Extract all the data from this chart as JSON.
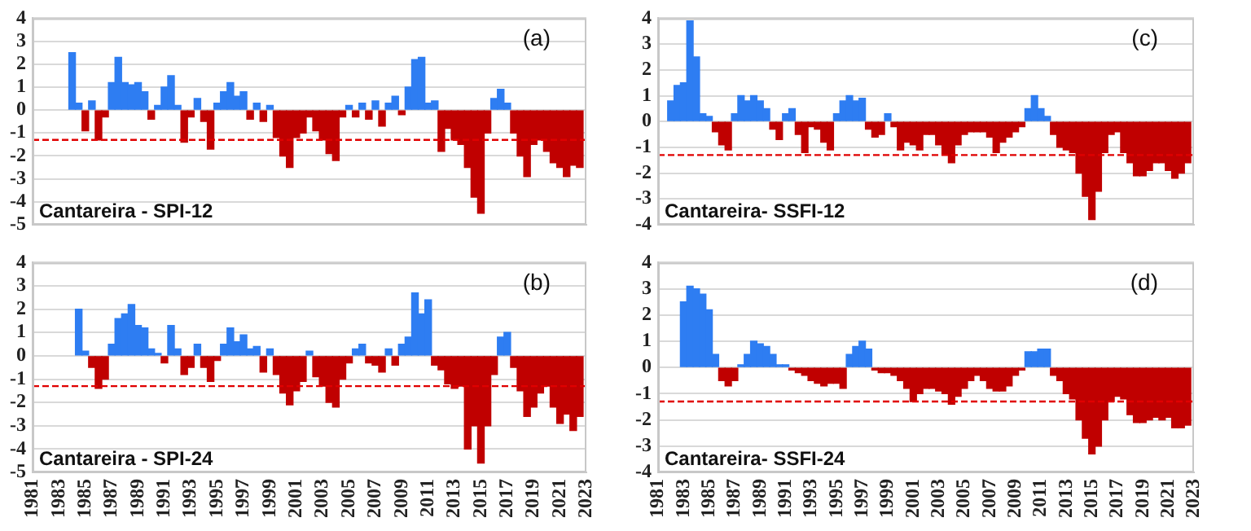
{
  "chart_data": [
    {
      "type": "bar",
      "title": "Cantareira - SPI-12",
      "annotations": [
        "(a)"
      ],
      "x": [
        1984,
        1984.5,
        1985,
        1985.5,
        1986,
        1986.5,
        1987,
        1987.5,
        1988,
        1988.5,
        1989,
        1989.5,
        1990,
        1990.5,
        1991,
        1991.5,
        1992,
        1992.5,
        1993,
        1993.5,
        1994,
        1994.5,
        1995,
        1995.5,
        1996,
        1996.5,
        1997,
        1997.5,
        1998,
        1998.5,
        1999,
        1999.5,
        2000,
        2000.5,
        2001,
        2001.5,
        2002,
        2002.5,
        2003,
        2003.5,
        2004,
        2004.5,
        2005,
        2005.5,
        2006,
        2006.5,
        2007,
        2007.5,
        2008,
        2008.5,
        2009,
        2009.5,
        2010,
        2010.5,
        2011,
        2011.5,
        2012,
        2012.5,
        2013,
        2013.5,
        2014,
        2014.5,
        2015,
        2015.5,
        2016,
        2016.5,
        2017,
        2017.5,
        2018,
        2018.5,
        2019,
        2019.5,
        2020,
        2020.5,
        2021,
        2021.5,
        2022,
        2022.5
      ],
      "values": [
        2.5,
        0.3,
        -0.9,
        0.4,
        -1.3,
        -0.3,
        1.2,
        2.3,
        1.2,
        1.1,
        1.2,
        0.8,
        -0.4,
        0.2,
        1.0,
        1.5,
        0.2,
        -1.4,
        -0.3,
        0.5,
        -0.5,
        -1.7,
        0.3,
        0.8,
        1.2,
        0.6,
        0.8,
        -0.4,
        0.3,
        -0.5,
        0.2,
        -1.2,
        -2.0,
        -2.5,
        -1.2,
        -1.0,
        -0.3,
        -0.9,
        -1.3,
        -1.9,
        -2.2,
        -0.3,
        0.2,
        -0.3,
        0.3,
        -0.4,
        0.4,
        -0.7,
        0.3,
        0.6,
        -0.2,
        1.0,
        2.2,
        2.3,
        0.3,
        0.4,
        -1.8,
        -0.8,
        -1.3,
        -1.5,
        -2.5,
        -3.8,
        -4.5,
        -1.0,
        0.5,
        0.9,
        0.3,
        -1.0,
        -2.0,
        -2.9,
        -1.5,
        -1.3,
        -1.8,
        -2.3,
        -2.5,
        -2.9,
        -2.4,
        -2.5
      ],
      "colors": [
        "#2e7df2",
        "#2e7df2",
        "#c00000",
        "#2e7df2",
        "#c00000",
        "#c00000",
        "#2e7df2",
        "#2e7df2",
        "#2e7df2",
        "#2e7df2",
        "#2e7df2",
        "#2e7df2",
        "#c00000",
        "#2e7df2",
        "#2e7df2",
        "#2e7df2",
        "#2e7df2",
        "#c00000",
        "#c00000",
        "#2e7df2",
        "#c00000",
        "#c00000",
        "#2e7df2",
        "#2e7df2",
        "#2e7df2",
        "#2e7df2",
        "#2e7df2",
        "#c00000",
        "#2e7df2",
        "#c00000",
        "#2e7df2",
        "#c00000",
        "#c00000",
        "#c00000",
        "#c00000",
        "#c00000",
        "#c00000",
        "#c00000",
        "#c00000",
        "#c00000",
        "#c00000",
        "#c00000",
        "#2e7df2",
        "#c00000",
        "#2e7df2",
        "#c00000",
        "#2e7df2",
        "#c00000",
        "#2e7df2",
        "#2e7df2",
        "#c00000",
        "#2e7df2",
        "#2e7df2",
        "#2e7df2",
        "#2e7df2",
        "#2e7df2",
        "#c00000",
        "#c00000",
        "#c00000",
        "#c00000",
        "#c00000",
        "#c00000",
        "#c00000",
        "#c00000",
        "#2e7df2",
        "#2e7df2",
        "#2e7df2",
        "#c00000",
        "#c00000",
        "#c00000",
        "#c00000",
        "#c00000",
        "#c00000",
        "#c00000",
        "#c00000",
        "#c00000",
        "#c00000",
        "#c00000"
      ],
      "xlim": [
        1981,
        2023
      ],
      "xticks": [
        1981,
        1983,
        1985,
        1987,
        1989,
        1991,
        1993,
        1995,
        1997,
        1999,
        2001,
        2003,
        2005,
        2007,
        2009,
        2011,
        2013,
        2015,
        2017,
        2019,
        2021,
        2023
      ],
      "ylim": [
        -5,
        4
      ],
      "yticks": [
        -5,
        -4,
        -3,
        -2,
        -1,
        0,
        1,
        2,
        3,
        4
      ],
      "grid": "y",
      "tick_labels": "y",
      "ref_lines": [
        {
          "axis": "y",
          "value": -1.3,
          "color": "#e00000",
          "line_style": "dashed"
        }
      ]
    },
    {
      "type": "bar",
      "title": "Cantareira- SSFI-12",
      "annotations": [
        "(c)"
      ],
      "x": [
        1982,
        1982.5,
        1983,
        1983.5,
        1984,
        1984.5,
        1985,
        1985.5,
        1986,
        1986.5,
        1987,
        1987.5,
        1988,
        1988.5,
        1989,
        1989.5,
        1990,
        1990.5,
        1991,
        1991.5,
        1992,
        1992.5,
        1993,
        1993.5,
        1994,
        1994.5,
        1995,
        1995.5,
        1996,
        1996.5,
        1997,
        1997.5,
        1998,
        1998.5,
        1999,
        1999.5,
        2000,
        2000.5,
        2001,
        2001.5,
        2002,
        2002.5,
        2003,
        2003.5,
        2004,
        2004.5,
        2005,
        2005.5,
        2006,
        2006.5,
        2007,
        2007.5,
        2008,
        2008.5,
        2009,
        2009.5,
        2010,
        2010.5,
        2011,
        2011.5,
        2012,
        2012.5,
        2013,
        2013.5,
        2014,
        2014.5,
        2015,
        2015.5,
        2016,
        2016.5,
        2017,
        2017.5,
        2018,
        2018.5,
        2019,
        2019.5,
        2020,
        2020.5,
        2021,
        2021.5,
        2022,
        2022.5
      ],
      "values": [
        0.8,
        1.4,
        1.5,
        3.9,
        2.5,
        0.3,
        0.2,
        -0.4,
        -0.9,
        -1.1,
        0.3,
        1.0,
        0.8,
        1.0,
        0.8,
        0.5,
        -0.3,
        -0.7,
        0.3,
        0.5,
        -0.5,
        -1.2,
        -0.2,
        -0.3,
        -0.8,
        -1.1,
        0.3,
        0.8,
        1.0,
        0.8,
        0.9,
        -0.3,
        -0.6,
        -0.5,
        0.3,
        -0.2,
        -1.1,
        -0.8,
        -0.9,
        -1.1,
        -0.5,
        -0.5,
        -0.9,
        -1.3,
        -1.6,
        -0.9,
        -0.5,
        -0.4,
        -0.4,
        -0.4,
        -0.6,
        -1.2,
        -0.8,
        -0.6,
        -0.4,
        -0.2,
        0.5,
        1.0,
        0.5,
        0.2,
        -0.5,
        -1.0,
        -1.1,
        -1.2,
        -2.0,
        -2.9,
        -3.8,
        -2.7,
        -1.2,
        -0.5,
        -0.4,
        -1.2,
        -1.6,
        -2.1,
        -2.1,
        -1.9,
        -1.6,
        -1.6,
        -1.9,
        -2.2,
        -2.0,
        -1.6
      ],
      "colors": [
        "#2e7df2",
        "#2e7df2",
        "#2e7df2",
        "#2e7df2",
        "#2e7df2",
        "#2e7df2",
        "#2e7df2",
        "#c00000",
        "#c00000",
        "#c00000",
        "#2e7df2",
        "#2e7df2",
        "#2e7df2",
        "#2e7df2",
        "#2e7df2",
        "#2e7df2",
        "#c00000",
        "#c00000",
        "#2e7df2",
        "#2e7df2",
        "#c00000",
        "#c00000",
        "#c00000",
        "#c00000",
        "#c00000",
        "#c00000",
        "#2e7df2",
        "#2e7df2",
        "#2e7df2",
        "#2e7df2",
        "#2e7df2",
        "#c00000",
        "#c00000",
        "#c00000",
        "#2e7df2",
        "#c00000",
        "#c00000",
        "#c00000",
        "#c00000",
        "#c00000",
        "#c00000",
        "#c00000",
        "#c00000",
        "#c00000",
        "#c00000",
        "#c00000",
        "#c00000",
        "#c00000",
        "#c00000",
        "#c00000",
        "#c00000",
        "#c00000",
        "#c00000",
        "#c00000",
        "#c00000",
        "#c00000",
        "#2e7df2",
        "#2e7df2",
        "#2e7df2",
        "#2e7df2",
        "#c00000",
        "#c00000",
        "#c00000",
        "#c00000",
        "#c00000",
        "#c00000",
        "#c00000",
        "#c00000",
        "#c00000",
        "#c00000",
        "#c00000",
        "#c00000",
        "#c00000",
        "#c00000",
        "#c00000",
        "#c00000",
        "#c00000",
        "#c00000",
        "#c00000",
        "#c00000",
        "#c00000",
        "#c00000"
      ],
      "xlim": [
        1981,
        2023
      ],
      "xticks": [
        1981,
        1983,
        1985,
        1987,
        1989,
        1991,
        1993,
        1995,
        1997,
        1999,
        2001,
        2003,
        2005,
        2007,
        2009,
        2011,
        2013,
        2015,
        2017,
        2019,
        2021,
        2023
      ],
      "ylim": [
        -4,
        4
      ],
      "yticks": [
        -4,
        -3,
        -2,
        -1,
        0,
        1,
        2,
        3,
        4
      ],
      "grid": "y",
      "tick_labels": "y",
      "ref_lines": [
        {
          "axis": "y",
          "value": -1.3,
          "color": "#e00000",
          "line_style": "dashed"
        }
      ]
    },
    {
      "type": "bar",
      "title": "Cantareira - SPI-24",
      "annotations": [
        "(b)"
      ],
      "x": [
        1984.5,
        1985,
        1985.5,
        1986,
        1986.5,
        1987,
        1987.5,
        1988,
        1988.5,
        1989,
        1989.5,
        1990,
        1990.5,
        1991,
        1991.5,
        1992,
        1992.5,
        1993,
        1993.5,
        1994,
        1994.5,
        1995,
        1995.5,
        1996,
        1996.5,
        1997,
        1997.5,
        1998,
        1998.5,
        1999,
        1999.5,
        2000,
        2000.5,
        2001,
        2001.5,
        2002,
        2002.5,
        2003,
        2003.5,
        2004,
        2004.5,
        2005,
        2005.5,
        2006,
        2006.5,
        2007,
        2007.5,
        2008,
        2008.5,
        2009,
        2009.5,
        2010,
        2010.5,
        2011,
        2011.5,
        2012,
        2012.5,
        2013,
        2013.5,
        2014,
        2014.5,
        2015,
        2015.5,
        2016,
        2016.5,
        2017,
        2017.5,
        2018,
        2018.5,
        2019,
        2019.5,
        2020,
        2020.5,
        2021,
        2021.5,
        2022,
        2022.5
      ],
      "values": [
        2.0,
        0.2,
        -0.5,
        -1.4,
        -1.0,
        0.5,
        1.6,
        1.8,
        2.2,
        1.3,
        1.2,
        0.3,
        0.1,
        -0.3,
        1.3,
        0.3,
        -0.8,
        -0.5,
        0.5,
        -0.5,
        -1.1,
        -0.2,
        0.5,
        1.2,
        0.6,
        0.9,
        0.3,
        0.4,
        -0.7,
        0.3,
        -0.8,
        -1.6,
        -2.1,
        -1.5,
        -1.1,
        0.2,
        -0.9,
        -1.3,
        -2.0,
        -2.2,
        -1.0,
        -0.3,
        0.3,
        0.5,
        -0.3,
        -0.4,
        -0.7,
        0.3,
        -0.4,
        0.5,
        0.8,
        2.7,
        1.8,
        2.4,
        -0.4,
        -0.6,
        -1.2,
        -1.4,
        -1.3,
        -4.0,
        -3.0,
        -4.6,
        -3.0,
        -0.8,
        0.8,
        1.0,
        -0.5,
        -1.5,
        -2.6,
        -2.2,
        -1.6,
        -1.3,
        -2.2,
        -2.9,
        -2.5,
        -3.2,
        -2.6
      ],
      "colors": [
        "#2e7df2",
        "#2e7df2",
        "#c00000",
        "#c00000",
        "#c00000",
        "#2e7df2",
        "#2e7df2",
        "#2e7df2",
        "#2e7df2",
        "#2e7df2",
        "#2e7df2",
        "#2e7df2",
        "#2e7df2",
        "#c00000",
        "#2e7df2",
        "#2e7df2",
        "#c00000",
        "#c00000",
        "#2e7df2",
        "#c00000",
        "#c00000",
        "#c00000",
        "#2e7df2",
        "#2e7df2",
        "#2e7df2",
        "#2e7df2",
        "#2e7df2",
        "#2e7df2",
        "#c00000",
        "#2e7df2",
        "#c00000",
        "#c00000",
        "#c00000",
        "#c00000",
        "#c00000",
        "#2e7df2",
        "#c00000",
        "#c00000",
        "#c00000",
        "#c00000",
        "#c00000",
        "#c00000",
        "#2e7df2",
        "#2e7df2",
        "#c00000",
        "#c00000",
        "#c00000",
        "#2e7df2",
        "#c00000",
        "#2e7df2",
        "#2e7df2",
        "#2e7df2",
        "#2e7df2",
        "#2e7df2",
        "#c00000",
        "#c00000",
        "#c00000",
        "#c00000",
        "#c00000",
        "#c00000",
        "#c00000",
        "#c00000",
        "#c00000",
        "#c00000",
        "#2e7df2",
        "#2e7df2",
        "#c00000",
        "#c00000",
        "#c00000",
        "#c00000",
        "#c00000",
        "#c00000",
        "#c00000",
        "#c00000",
        "#c00000",
        "#c00000",
        "#c00000"
      ],
      "xlim": [
        1981,
        2023
      ],
      "xticks": [
        1981,
        1983,
        1985,
        1987,
        1989,
        1991,
        1993,
        1995,
        1997,
        1999,
        2001,
        2003,
        2005,
        2007,
        2009,
        2011,
        2013,
        2015,
        2017,
        2019,
        2021,
        2023
      ],
      "ylim": [
        -5,
        4
      ],
      "yticks": [
        -5,
        -4,
        -3,
        -2,
        -1,
        0,
        1,
        2,
        3,
        4
      ],
      "grid": "y",
      "ref_lines": [
        {
          "axis": "y",
          "value": -1.3,
          "color": "#e00000",
          "line_style": "dashed"
        }
      ]
    },
    {
      "type": "bar",
      "title": "Cantareira- SSFI-24",
      "annotations": [
        "(d)"
      ],
      "x": [
        1983,
        1983.5,
        1984,
        1984.5,
        1985,
        1985.5,
        1986,
        1986.5,
        1987,
        1987.5,
        1988,
        1988.5,
        1989,
        1989.5,
        1990,
        1990.5,
        1991,
        1991.5,
        1992,
        1992.5,
        1993,
        1993.5,
        1994,
        1994.5,
        1995,
        1995.5,
        1996,
        1996.5,
        1997,
        1997.5,
        1998,
        1998.5,
        1999,
        1999.5,
        2000,
        2000.5,
        2001,
        2001.5,
        2002,
        2002.5,
        2003,
        2003.5,
        2004,
        2004.5,
        2005,
        2005.5,
        2006,
        2006.5,
        2007,
        2007.5,
        2008,
        2008.5,
        2009,
        2009.5,
        2010,
        2010.5,
        2011,
        2011.5,
        2012,
        2012.5,
        2013,
        2013.5,
        2014,
        2014.5,
        2015,
        2015.5,
        2016,
        2016.5,
        2017,
        2017.5,
        2018,
        2018.5,
        2019,
        2019.5,
        2020,
        2020.5,
        2021,
        2021.5,
        2022,
        2022.5
      ],
      "values": [
        2.5,
        3.1,
        3.0,
        2.8,
        2.2,
        0.5,
        -0.5,
        -0.7,
        -0.5,
        0.1,
        0.5,
        1.0,
        0.9,
        0.8,
        0.5,
        0.1,
        0.1,
        -0.1,
        -0.2,
        -0.3,
        -0.5,
        -0.6,
        -0.7,
        -0.6,
        -0.6,
        -0.8,
        0.5,
        0.8,
        1.0,
        0.7,
        -0.1,
        -0.2,
        -0.2,
        -0.3,
        -0.5,
        -0.8,
        -1.3,
        -1.0,
        -0.8,
        -0.8,
        -0.9,
        -1.0,
        -1.4,
        -1.1,
        -0.8,
        -0.5,
        -0.3,
        -0.5,
        -0.8,
        -0.9,
        -0.9,
        -0.7,
        -0.3,
        -0.1,
        0.6,
        0.6,
        0.7,
        0.7,
        -0.3,
        -0.5,
        -1.0,
        -1.2,
        -2.0,
        -2.7,
        -3.3,
        -3.0,
        -2.0,
        -1.3,
        -1.1,
        -1.2,
        -1.8,
        -2.1,
        -2.1,
        -2.0,
        -1.9,
        -2.0,
        -1.9,
        -2.3,
        -2.3,
        -2.2
      ],
      "colors": [
        "#2e7df2",
        "#2e7df2",
        "#2e7df2",
        "#2e7df2",
        "#2e7df2",
        "#2e7df2",
        "#c00000",
        "#c00000",
        "#c00000",
        "#2e7df2",
        "#2e7df2",
        "#2e7df2",
        "#2e7df2",
        "#2e7df2",
        "#2e7df2",
        "#2e7df2",
        "#2e7df2",
        "#c00000",
        "#c00000",
        "#c00000",
        "#c00000",
        "#c00000",
        "#c00000",
        "#c00000",
        "#c00000",
        "#c00000",
        "#2e7df2",
        "#2e7df2",
        "#2e7df2",
        "#2e7df2",
        "#c00000",
        "#c00000",
        "#c00000",
        "#c00000",
        "#c00000",
        "#c00000",
        "#c00000",
        "#c00000",
        "#c00000",
        "#c00000",
        "#c00000",
        "#c00000",
        "#c00000",
        "#c00000",
        "#c00000",
        "#c00000",
        "#c00000",
        "#c00000",
        "#c00000",
        "#c00000",
        "#c00000",
        "#c00000",
        "#c00000",
        "#c00000",
        "#2e7df2",
        "#2e7df2",
        "#2e7df2",
        "#2e7df2",
        "#c00000",
        "#c00000",
        "#c00000",
        "#c00000",
        "#c00000",
        "#c00000",
        "#c00000",
        "#c00000",
        "#c00000",
        "#c00000",
        "#c00000",
        "#c00000",
        "#c00000",
        "#c00000",
        "#c00000",
        "#c00000",
        "#c00000",
        "#c00000",
        "#c00000",
        "#c00000",
        "#c00000",
        "#c00000"
      ],
      "xlim": [
        1981,
        2023
      ],
      "xticks": [
        1981,
        1983,
        1985,
        1987,
        1989,
        1991,
        1993,
        1995,
        1997,
        1999,
        2001,
        2003,
        2005,
        2007,
        2009,
        2011,
        2013,
        2015,
        2017,
        2019,
        2021,
        2023
      ],
      "ylim": [
        -4,
        4
      ],
      "yticks": [
        -4,
        -3,
        -2,
        -1,
        0,
        1,
        2,
        3,
        4
      ],
      "grid": "y",
      "ref_lines": [
        {
          "axis": "y",
          "value": -1.3,
          "color": "#e00000",
          "line_style": "dashed"
        }
      ]
    }
  ]
}
